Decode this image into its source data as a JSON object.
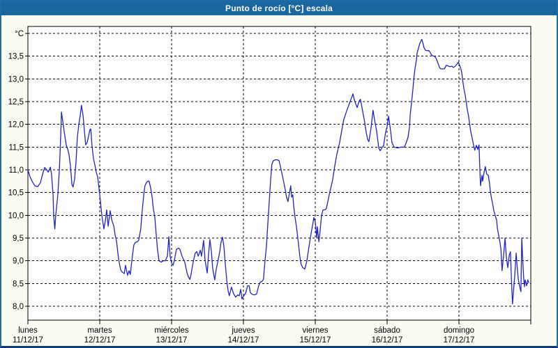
{
  "title_bar": {
    "title": "Punto de rocío [°C] escala"
  },
  "colors": {
    "titlebar_bg": "#19679E",
    "titlebar_text": "#FFFFFF",
    "window_bg": "#FAFCF2",
    "plot_bg": "#FFFFFF",
    "grid_color": "#000000",
    "line_color": "#2222C2",
    "frame_border": "#1E6AA8"
  },
  "chart_data": {
    "type": "line",
    "title": "Punto de rocío [°C] escala",
    "ylabel": "",
    "xlabel": "",
    "y_unit_label": "°C",
    "ylim": [
      8.0,
      14.0
    ],
    "y_tick_step": 0.5,
    "grid": "dashed",
    "legend": "none",
    "y_ticks": [
      {
        "value": 14.0,
        "label": "°C"
      },
      {
        "value": 13.5,
        "label": "13,5"
      },
      {
        "value": 13.0,
        "label": "13,0"
      },
      {
        "value": 12.5,
        "label": "12,5"
      },
      {
        "value": 12.0,
        "label": "12,0"
      },
      {
        "value": 11.5,
        "label": "11,5"
      },
      {
        "value": 11.0,
        "label": "11,0"
      },
      {
        "value": 10.5,
        "label": "10,5"
      },
      {
        "value": 10.0,
        "label": "10,0"
      },
      {
        "value": 9.5,
        "label": "9,5"
      },
      {
        "value": 9.0,
        "label": "9,0"
      },
      {
        "value": 8.5,
        "label": "8,5"
      },
      {
        "value": 8.0,
        "label": "8,0"
      }
    ],
    "x_ticks": [
      {
        "day": "lunes",
        "date": "11/12/17"
      },
      {
        "day": "martes",
        "date": "12/12/17"
      },
      {
        "day": "miércoles",
        "date": "13/12/17"
      },
      {
        "day": "jueves",
        "date": "14/12/17"
      },
      {
        "day": "viernes",
        "date": "15/12/17"
      },
      {
        "day": "sábado",
        "date": "16/12/17"
      },
      {
        "day": "domingo",
        "date": "17/12/17"
      }
    ],
    "x_unit": "hours since 11/12/17 00:00",
    "points": [
      [
        0,
        11.0
      ],
      [
        0.7,
        10.85
      ],
      [
        1.4,
        10.75
      ],
      [
        2.3,
        10.65
      ],
      [
        3.3,
        10.63
      ],
      [
        4.2,
        10.72
      ],
      [
        4.9,
        10.9
      ],
      [
        5.6,
        11.05
      ],
      [
        6.3,
        11.0
      ],
      [
        6.8,
        10.95
      ],
      [
        7.5,
        11.06
      ],
      [
        7.9,
        10.9
      ],
      [
        8.4,
        10.45
      ],
      [
        8.6,
        10.0
      ],
      [
        9.0,
        9.7
      ],
      [
        9.3,
        10.0
      ],
      [
        10.0,
        10.45
      ],
      [
        10.5,
        11.0
      ],
      [
        11.0,
        11.8
      ],
      [
        11.2,
        12.27
      ],
      [
        11.7,
        12.05
      ],
      [
        12.1,
        11.85
      ],
      [
        12.8,
        11.55
      ],
      [
        13.3,
        11.45
      ],
      [
        13.7,
        11.35
      ],
      [
        14.2,
        11.1
      ],
      [
        14.7,
        10.68
      ],
      [
        15.1,
        10.62
      ],
      [
        15.6,
        10.8
      ],
      [
        16.1,
        11.2
      ],
      [
        16.5,
        11.7
      ],
      [
        17.0,
        12.0
      ],
      [
        17.5,
        12.2
      ],
      [
        17.9,
        12.42
      ],
      [
        18.4,
        12.2
      ],
      [
        18.9,
        11.85
      ],
      [
        19.3,
        11.55
      ],
      [
        19.8,
        11.6
      ],
      [
        20.3,
        11.75
      ],
      [
        20.7,
        11.88
      ],
      [
        21.0,
        11.9
      ],
      [
        21.4,
        11.55
      ],
      [
        21.9,
        11.25
      ],
      [
        22.4,
        11.1
      ],
      [
        22.8,
        10.95
      ],
      [
        23.3,
        10.85
      ],
      [
        24.0,
        10.45
      ],
      [
        24.7,
        10.0
      ],
      [
        25.4,
        9.7
      ],
      [
        25.9,
        9.9
      ],
      [
        26.3,
        10.12
      ],
      [
        26.8,
        9.76
      ],
      [
        27.5,
        10.1
      ],
      [
        28.0,
        9.9
      ],
      [
        28.7,
        9.76
      ],
      [
        29.1,
        9.58
      ],
      [
        29.6,
        9.44
      ],
      [
        30.3,
        9.04
      ],
      [
        31.0,
        8.8
      ],
      [
        31.5,
        8.75
      ],
      [
        32.2,
        8.72
      ],
      [
        32.6,
        8.9
      ],
      [
        33.3,
        8.68
      ],
      [
        33.8,
        8.78
      ],
      [
        34.2,
        8.7
      ],
      [
        34.9,
        9.1
      ],
      [
        35.4,
        9.35
      ],
      [
        35.9,
        9.4
      ],
      [
        36.6,
        9.42
      ],
      [
        37.0,
        9.45
      ],
      [
        37.7,
        9.7
      ],
      [
        38.2,
        10.1
      ],
      [
        38.7,
        10.45
      ],
      [
        39.1,
        10.65
      ],
      [
        39.6,
        10.72
      ],
      [
        40.1,
        10.75
      ],
      [
        40.5,
        10.75
      ],
      [
        41.0,
        10.6
      ],
      [
        41.5,
        10.4
      ],
      [
        41.9,
        10.15
      ],
      [
        42.4,
        9.95
      ],
      [
        42.9,
        9.55
      ],
      [
        43.3,
        9.25
      ],
      [
        43.8,
        9.0
      ],
      [
        44.5,
        8.97
      ],
      [
        45.2,
        9.0
      ],
      [
        45.9,
        9.0
      ],
      [
        46.6,
        9.1
      ],
      [
        47.1,
        9.53
      ],
      [
        47.5,
        9.1
      ],
      [
        48.0,
        8.95
      ],
      [
        48.5,
        8.9
      ],
      [
        48.9,
        9.0
      ],
      [
        49.6,
        9.25
      ],
      [
        50.3,
        9.28
      ],
      [
        50.8,
        9.25
      ],
      [
        51.5,
        9.1
      ],
      [
        52.4,
        8.97
      ],
      [
        53.1,
        8.75
      ],
      [
        53.6,
        8.65
      ],
      [
        54.1,
        8.59
      ],
      [
        54.5,
        8.7
      ],
      [
        55.2,
        8.97
      ],
      [
        55.9,
        9.17
      ],
      [
        56.4,
        9.2
      ],
      [
        56.9,
        9.1
      ],
      [
        57.6,
        9.23
      ],
      [
        58.0,
        9.1
      ],
      [
        58.7,
        9.45
      ],
      [
        59.2,
        9.0
      ],
      [
        59.9,
        8.73
      ],
      [
        60.3,
        9.1
      ],
      [
        60.8,
        9.47
      ],
      [
        61.3,
        9.2
      ],
      [
        61.7,
        8.85
      ],
      [
        62.4,
        8.58
      ],
      [
        62.9,
        8.8
      ],
      [
        63.4,
        8.97
      ],
      [
        64.1,
        9.2
      ],
      [
        64.5,
        9.4
      ],
      [
        65.0,
        9.52
      ],
      [
        65.5,
        9.3
      ],
      [
        65.9,
        8.97
      ],
      [
        66.4,
        8.58
      ],
      [
        66.9,
        8.33
      ],
      [
        67.3,
        8.23
      ],
      [
        68.0,
        8.42
      ],
      [
        68.7,
        8.28
      ],
      [
        69.4,
        8.2
      ],
      [
        70.1,
        8.25
      ],
      [
        70.6,
        8.23
      ],
      [
        71.1,
        8.37
      ],
      [
        71.5,
        8.16
      ],
      [
        72.0,
        8.22
      ],
      [
        72.7,
        8.28
      ],
      [
        73.4,
        8.45
      ],
      [
        73.9,
        8.45
      ],
      [
        74.3,
        8.3
      ],
      [
        75.0,
        8.26
      ],
      [
        75.7,
        8.25
      ],
      [
        76.4,
        8.27
      ],
      [
        77.1,
        8.45
      ],
      [
        77.6,
        8.53
      ],
      [
        78.3,
        8.55
      ],
      [
        78.7,
        8.6
      ],
      [
        79.2,
        9.0
      ],
      [
        79.7,
        9.32
      ],
      [
        80.1,
        9.77
      ],
      [
        80.6,
        10.28
      ],
      [
        81.1,
        10.8
      ],
      [
        81.5,
        11.12
      ],
      [
        82.0,
        11.2
      ],
      [
        82.7,
        11.22
      ],
      [
        83.4,
        11.22
      ],
      [
        83.9,
        11.2
      ],
      [
        84.6,
        11.0
      ],
      [
        85.3,
        10.78
      ],
      [
        86.0,
        10.55
      ],
      [
        86.4,
        10.4
      ],
      [
        86.9,
        10.3
      ],
      [
        87.4,
        10.5
      ],
      [
        87.8,
        10.65
      ],
      [
        88.1,
        10.4
      ],
      [
        88.5,
        10.45
      ],
      [
        88.8,
        10.2
      ],
      [
        89.2,
        9.98
      ],
      [
        89.7,
        9.75
      ],
      [
        90.2,
        9.48
      ],
      [
        90.9,
        9.07
      ],
      [
        91.3,
        8.92
      ],
      [
        91.8,
        8.85
      ],
      [
        92.5,
        8.82
      ],
      [
        93.2,
        9.0
      ],
      [
        93.7,
        9.22
      ],
      [
        94.4,
        9.52
      ],
      [
        95.1,
        9.78
      ],
      [
        95.5,
        9.95
      ],
      [
        96.0,
        9.85
      ],
      [
        96.5,
        9.5
      ],
      [
        96.7,
        9.75
      ],
      [
        97.2,
        9.42
      ],
      [
        97.6,
        9.65
      ],
      [
        98.1,
        10.0
      ],
      [
        98.6,
        10.12
      ],
      [
        99.3,
        10.12
      ],
      [
        99.7,
        10.15
      ],
      [
        100.2,
        10.3
      ],
      [
        100.9,
        10.52
      ],
      [
        101.8,
        10.78
      ],
      [
        102.5,
        11.08
      ],
      [
        103.2,
        11.34
      ],
      [
        104.1,
        11.59
      ],
      [
        104.8,
        11.85
      ],
      [
        105.5,
        12.1
      ],
      [
        106.5,
        12.3
      ],
      [
        107.2,
        12.42
      ],
      [
        107.9,
        12.55
      ],
      [
        108.6,
        12.67
      ],
      [
        109.0,
        12.55
      ],
      [
        109.5,
        12.45
      ],
      [
        110.0,
        12.37
      ],
      [
        110.7,
        12.52
      ],
      [
        111.1,
        12.55
      ],
      [
        111.8,
        12.3
      ],
      [
        112.5,
        12.05
      ],
      [
        113.0,
        11.82
      ],
      [
        113.5,
        11.67
      ],
      [
        113.9,
        11.62
      ],
      [
        114.6,
        11.9
      ],
      [
        115.3,
        12.31
      ],
      [
        115.8,
        12.1
      ],
      [
        116.5,
        11.85
      ],
      [
        117.2,
        11.48
      ],
      [
        117.7,
        11.42
      ],
      [
        118.4,
        11.5
      ],
      [
        118.8,
        11.53
      ],
      [
        119.5,
        11.83
      ],
      [
        120.0,
        11.95
      ],
      [
        120.5,
        12.18
      ],
      [
        121.2,
        11.83
      ],
      [
        121.6,
        11.6
      ],
      [
        122.3,
        11.5
      ],
      [
        123.5,
        11.48
      ],
      [
        124.7,
        11.5
      ],
      [
        125.8,
        11.5
      ],
      [
        126.5,
        11.62
      ],
      [
        127.0,
        11.72
      ],
      [
        127.5,
        11.95
      ],
      [
        127.7,
        12.2
      ],
      [
        128.2,
        12.5
      ],
      [
        128.6,
        12.76
      ],
      [
        128.9,
        12.99
      ],
      [
        129.3,
        13.22
      ],
      [
        129.8,
        13.42
      ],
      [
        130.0,
        13.56
      ],
      [
        130.5,
        13.68
      ],
      [
        130.9,
        13.78
      ],
      [
        131.6,
        13.87
      ],
      [
        132.1,
        13.75
      ],
      [
        132.3,
        13.69
      ],
      [
        132.8,
        13.63
      ],
      [
        133.5,
        13.62
      ],
      [
        134.0,
        13.62
      ],
      [
        134.4,
        13.58
      ],
      [
        134.7,
        13.54
      ],
      [
        135.1,
        13.51
      ],
      [
        135.8,
        13.5
      ],
      [
        136.3,
        13.46
      ],
      [
        136.8,
        13.38
      ],
      [
        137.5,
        13.25
      ],
      [
        137.9,
        13.22
      ],
      [
        138.6,
        13.22
      ],
      [
        139.1,
        13.22
      ],
      [
        139.8,
        13.3
      ],
      [
        140.5,
        13.28
      ],
      [
        141.0,
        13.27
      ],
      [
        141.7,
        13.28
      ],
      [
        142.1,
        13.25
      ],
      [
        142.8,
        13.28
      ],
      [
        143.3,
        13.32
      ],
      [
        143.8,
        13.37
      ],
      [
        144.2,
        13.3
      ],
      [
        144.5,
        13.25
      ],
      [
        144.9,
        13.15
      ],
      [
        145.2,
        13.0
      ],
      [
        145.6,
        12.8
      ],
      [
        146.1,
        12.64
      ],
      [
        146.8,
        12.32
      ],
      [
        147.2,
        12.19
      ],
      [
        147.5,
        12.04
      ],
      [
        147.9,
        11.86
      ],
      [
        148.4,
        11.7
      ],
      [
        148.9,
        11.54
      ],
      [
        149.3,
        11.43
      ],
      [
        149.8,
        11.54
      ],
      [
        150.3,
        11.45
      ],
      [
        150.7,
        11.55
      ],
      [
        151.0,
        11.0
      ],
      [
        151.2,
        10.65
      ],
      [
        151.7,
        10.88
      ],
      [
        151.9,
        10.75
      ],
      [
        152.4,
        10.95
      ],
      [
        152.8,
        11.07
      ],
      [
        153.3,
        10.9
      ],
      [
        153.8,
        10.88
      ],
      [
        154.2,
        10.7
      ],
      [
        154.5,
        10.52
      ],
      [
        154.9,
        10.36
      ],
      [
        155.4,
        10.21
      ],
      [
        155.6,
        10.11
      ],
      [
        156.1,
        10.0
      ],
      [
        156.6,
        9.89
      ],
      [
        156.8,
        9.73
      ],
      [
        157.3,
        9.55
      ],
      [
        157.7,
        9.4
      ],
      [
        158.0,
        9.27
      ],
      [
        158.4,
        8.78
      ],
      [
        158.9,
        9.1
      ],
      [
        159.4,
        9.5
      ],
      [
        159.8,
        9.1
      ],
      [
        160.3,
        8.85
      ],
      [
        160.8,
        9.12
      ],
      [
        161.2,
        9.2
      ],
      [
        161.5,
        8.63
      ],
      [
        161.9,
        8.05
      ],
      [
        162.4,
        8.5
      ],
      [
        162.6,
        8.63
      ],
      [
        163.1,
        9.17
      ],
      [
        163.6,
        8.75
      ],
      [
        163.8,
        8.6
      ],
      [
        164.3,
        8.43
      ],
      [
        164.7,
        8.32
      ],
      [
        165.0,
        9.5
      ],
      [
        165.4,
        8.9
      ],
      [
        165.7,
        8.55
      ],
      [
        165.9,
        8.43
      ],
      [
        166.1,
        8.58
      ],
      [
        166.6,
        8.45
      ],
      [
        167.0,
        8.58
      ],
      [
        167.3,
        8.52
      ]
    ]
  }
}
